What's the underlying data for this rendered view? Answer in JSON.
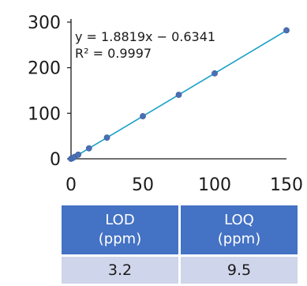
{
  "chart_data": {
    "type": "scatter",
    "title": "",
    "xlabel": "",
    "ylabel": "",
    "xlim": [
      0,
      150
    ],
    "ylim": [
      0,
      300
    ],
    "x_ticks": [
      "0",
      "50",
      "100",
      "150"
    ],
    "y_ticks": [
      "0",
      "100",
      "200",
      "300"
    ],
    "grid": false,
    "series": [
      {
        "points": [
          {
            "x": 0,
            "y": 0
          },
          {
            "x": 1,
            "y": 1.5
          },
          {
            "x": 2.5,
            "y": 4.2
          },
          {
            "x": 5,
            "y": 9
          },
          {
            "x": 12.5,
            "y": 23
          },
          {
            "x": 25,
            "y": 46.5
          },
          {
            "x": 50,
            "y": 93.5
          },
          {
            "x": 75,
            "y": 140.5
          },
          {
            "x": 100,
            "y": 187.5
          },
          {
            "x": 150,
            "y": 282
          }
        ],
        "marker_color": "#4a6fb5"
      }
    ],
    "trendline": {
      "slope": 1.8819,
      "intercept": -0.6341,
      "color": "#1aa0c8",
      "equation_label": "y = 1.8819x − 0.6341",
      "r2_label": "R² = 0.9997"
    }
  },
  "table": {
    "headers": [
      {
        "line1": "LOD",
        "line2": "(ppm)"
      },
      {
        "line1": "LOQ",
        "line2": "(ppm)"
      }
    ],
    "values": [
      "3.2",
      "9.5"
    ]
  },
  "colors": {
    "header_bg": "#4472c4",
    "cell_bg": "#cfd5ea"
  }
}
